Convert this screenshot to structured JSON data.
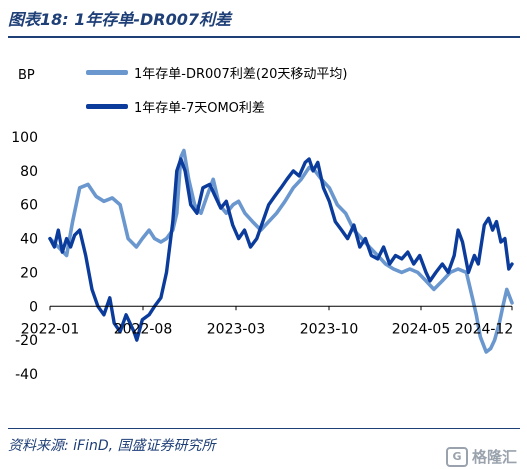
{
  "figure": {
    "title": "图表18: 1年存单-DR007利差",
    "source": "资料来源: iFinD, 国盛证券研究所",
    "watermark": "格隆汇",
    "watermark_logo": "G"
  },
  "colors": {
    "series_light": "#6b97cf",
    "series_dark": "#0b3c9c",
    "title": "#1f3f77"
  },
  "chart_data": {
    "type": "line",
    "unit_label": "BP",
    "x_ticks": [
      "2022-01",
      "2022-08",
      "2023-03",
      "2023-10",
      "2024-05",
      "2024-12"
    ],
    "y_ticks": [
      100,
      80,
      60,
      40,
      20,
      0,
      -20,
      -40
    ],
    "ylim": [
      -40,
      100
    ],
    "xlim": [
      "2021-12-25",
      "2025-03-05"
    ],
    "grid": false,
    "legend_position": "top",
    "series": [
      {
        "name": "1年存单-DR007利差(20天移动平均)",
        "color": "#6b97cf",
        "points": [
          [
            "2021-12-25",
            40
          ],
          [
            "2022-01-15",
            35
          ],
          [
            "2022-02-05",
            30
          ],
          [
            "2022-02-20",
            50
          ],
          [
            "2022-03-10",
            70
          ],
          [
            "2022-03-31",
            72
          ],
          [
            "2022-04-20",
            65
          ],
          [
            "2022-05-10",
            62
          ],
          [
            "2022-05-31",
            64
          ],
          [
            "2022-06-20",
            60
          ],
          [
            "2022-07-10",
            40
          ],
          [
            "2022-07-31",
            35
          ],
          [
            "2022-08-15",
            40
          ],
          [
            "2022-09-01",
            45
          ],
          [
            "2022-09-15",
            40
          ],
          [
            "2022-10-01",
            38
          ],
          [
            "2022-10-15",
            40
          ],
          [
            "2022-10-31",
            45
          ],
          [
            "2022-11-10",
            55
          ],
          [
            "2022-11-20",
            88
          ],
          [
            "2022-11-28",
            92
          ],
          [
            "2022-12-10",
            75
          ],
          [
            "2022-12-25",
            60
          ],
          [
            "2023-01-10",
            55
          ],
          [
            "2023-01-25",
            65
          ],
          [
            "2023-02-10",
            75
          ],
          [
            "2023-02-25",
            60
          ],
          [
            "2023-03-15",
            55
          ],
          [
            "2023-04-01",
            60
          ],
          [
            "2023-04-15",
            62
          ],
          [
            "2023-05-01",
            55
          ],
          [
            "2023-05-20",
            50
          ],
          [
            "2023-06-10",
            45
          ],
          [
            "2023-06-30",
            50
          ],
          [
            "2023-07-20",
            55
          ],
          [
            "2023-08-10",
            62
          ],
          [
            "2023-08-31",
            70
          ],
          [
            "2023-09-20",
            75
          ],
          [
            "2023-10-10",
            82
          ],
          [
            "2023-10-25",
            80
          ],
          [
            "2023-11-10",
            75
          ],
          [
            "2023-11-30",
            70
          ],
          [
            "2023-12-20",
            60
          ],
          [
            "2024-01-10",
            55
          ],
          [
            "2024-01-31",
            45
          ],
          [
            "2024-02-20",
            40
          ],
          [
            "2024-03-10",
            35
          ],
          [
            "2024-03-31",
            30
          ],
          [
            "2024-04-20",
            25
          ],
          [
            "2024-05-10",
            22
          ],
          [
            "2024-05-31",
            20
          ],
          [
            "2024-06-20",
            22
          ],
          [
            "2024-07-10",
            20
          ],
          [
            "2024-07-31",
            15
          ],
          [
            "2024-08-20",
            10
          ],
          [
            "2024-09-10",
            15
          ],
          [
            "2024-09-30",
            20
          ],
          [
            "2024-10-20",
            22
          ],
          [
            "2024-11-10",
            20
          ],
          [
            "2024-11-25",
            5
          ],
          [
            "2024-12-05",
            -5
          ],
          [
            "2024-12-15",
            -18
          ],
          [
            "2024-12-30",
            -27
          ],
          [
            "2025-01-10",
            -25
          ],
          [
            "2025-01-20",
            -20
          ],
          [
            "2025-02-01",
            -10
          ],
          [
            "2025-02-10",
            0
          ],
          [
            "2025-02-20",
            10
          ],
          [
            "2025-03-05",
            2
          ]
        ]
      },
      {
        "name": "1年存单-7天OMO利差",
        "color": "#0b3c9c",
        "points": [
          [
            "2021-12-25",
            40
          ],
          [
            "2022-01-05",
            35
          ],
          [
            "2022-01-15",
            45
          ],
          [
            "2022-01-25",
            32
          ],
          [
            "2022-02-05",
            40
          ],
          [
            "2022-02-15",
            35
          ],
          [
            "2022-02-25",
            42
          ],
          [
            "2022-03-10",
            45
          ],
          [
            "2022-03-25",
            30
          ],
          [
            "2022-04-10",
            10
          ],
          [
            "2022-04-25",
            0
          ],
          [
            "2022-05-10",
            -5
          ],
          [
            "2022-05-25",
            5
          ],
          [
            "2022-06-05",
            -10
          ],
          [
            "2022-06-20",
            -15
          ],
          [
            "2022-07-05",
            -5
          ],
          [
            "2022-07-25",
            -15
          ],
          [
            "2022-08-01",
            -20
          ],
          [
            "2022-08-15",
            -8
          ],
          [
            "2022-09-01",
            -5
          ],
          [
            "2022-09-15",
            0
          ],
          [
            "2022-10-01",
            5
          ],
          [
            "2022-10-15",
            20
          ],
          [
            "2022-10-31",
            50
          ],
          [
            "2022-11-10",
            80
          ],
          [
            "2022-11-20",
            87
          ],
          [
            "2022-12-01",
            80
          ],
          [
            "2022-12-15",
            60
          ],
          [
            "2022-12-31",
            55
          ],
          [
            "2023-01-15",
            70
          ],
          [
            "2023-02-01",
            72
          ],
          [
            "2023-02-15",
            65
          ],
          [
            "2023-03-01",
            58
          ],
          [
            "2023-03-15",
            62
          ],
          [
            "2023-03-31",
            48
          ],
          [
            "2023-04-15",
            40
          ],
          [
            "2023-04-30",
            45
          ],
          [
            "2023-05-15",
            35
          ],
          [
            "2023-05-31",
            40
          ],
          [
            "2023-06-15",
            50
          ],
          [
            "2023-06-30",
            60
          ],
          [
            "2023-07-15",
            65
          ],
          [
            "2023-07-31",
            70
          ],
          [
            "2023-08-15",
            75
          ],
          [
            "2023-08-31",
            80
          ],
          [
            "2023-09-15",
            77
          ],
          [
            "2023-09-30",
            85
          ],
          [
            "2023-10-10",
            87
          ],
          [
            "2023-10-20",
            80
          ],
          [
            "2023-11-01",
            85
          ],
          [
            "2023-11-15",
            70
          ],
          [
            "2023-11-30",
            62
          ],
          [
            "2023-12-15",
            50
          ],
          [
            "2023-12-31",
            45
          ],
          [
            "2024-01-15",
            40
          ],
          [
            "2024-01-31",
            48
          ],
          [
            "2024-02-15",
            35
          ],
          [
            "2024-02-29",
            40
          ],
          [
            "2024-03-15",
            30
          ],
          [
            "2024-03-31",
            28
          ],
          [
            "2024-04-15",
            35
          ],
          [
            "2024-04-30",
            25
          ],
          [
            "2024-05-15",
            30
          ],
          [
            "2024-05-31",
            28
          ],
          [
            "2024-06-15",
            32
          ],
          [
            "2024-06-30",
            25
          ],
          [
            "2024-07-15",
            30
          ],
          [
            "2024-07-31",
            20
          ],
          [
            "2024-08-10",
            15
          ],
          [
            "2024-08-25",
            20
          ],
          [
            "2024-09-10",
            25
          ],
          [
            "2024-09-25",
            20
          ],
          [
            "2024-10-10",
            30
          ],
          [
            "2024-10-20",
            45
          ],
          [
            "2024-10-31",
            38
          ],
          [
            "2024-11-15",
            20
          ],
          [
            "2024-11-30",
            30
          ],
          [
            "2024-12-10",
            25
          ],
          [
            "2024-12-25",
            48
          ],
          [
            "2025-01-05",
            52
          ],
          [
            "2025-01-15",
            45
          ],
          [
            "2025-01-25",
            50
          ],
          [
            "2025-02-05",
            38
          ],
          [
            "2025-02-15",
            40
          ],
          [
            "2025-02-25",
            22
          ],
          [
            "2025-03-05",
            25
          ]
        ]
      }
    ]
  }
}
